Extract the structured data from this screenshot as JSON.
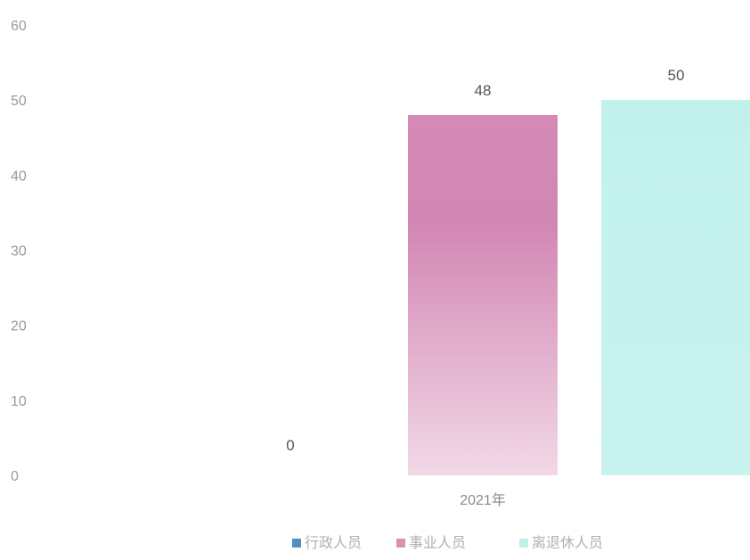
{
  "chart_data": {
    "type": "bar",
    "categories": [
      "2021年"
    ],
    "series": [
      {
        "name": "行政人员",
        "values": [
          0
        ],
        "color": "#4f8fc4"
      },
      {
        "name": "事业人员",
        "values": [
          48
        ],
        "color": "#d890b8"
      },
      {
        "name": "离退休人员",
        "values": [
          50
        ],
        "color": "#bff0ea"
      }
    ],
    "ylim": [
      0,
      60
    ],
    "yticks": [
      0,
      10,
      20,
      30,
      40,
      50,
      60
    ],
    "data_labels": [
      "0",
      "48",
      "50"
    ],
    "legend_position": "bottom",
    "grid": false,
    "title": "",
    "xlabel": "",
    "ylabel": ""
  }
}
